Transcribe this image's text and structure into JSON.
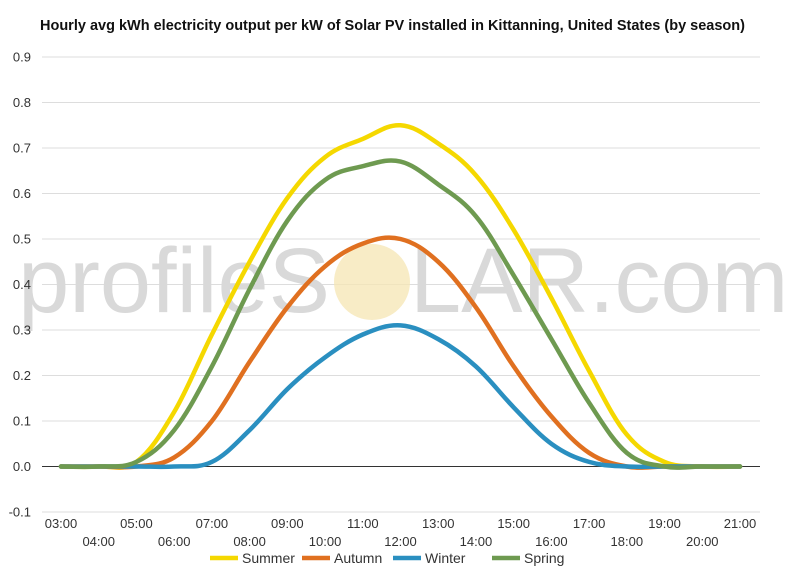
{
  "chart_data": {
    "type": "line",
    "title": "Hourly avg kWh electricity output per kW of Solar PV installed in Kittanning, United States (by season)",
    "xlabel": "",
    "ylabel": "",
    "ylim": [
      -0.1,
      0.9
    ],
    "yticks": [
      "-0.1",
      "0.0",
      "0.1",
      "0.2",
      "0.3",
      "0.4",
      "0.5",
      "0.6",
      "0.7",
      "0.8",
      "0.9"
    ],
    "x": [
      "03:00",
      "04:00",
      "05:00",
      "06:00",
      "07:00",
      "08:00",
      "09:00",
      "10:00",
      "11:00",
      "12:00",
      "13:00",
      "14:00",
      "15:00",
      "16:00",
      "17:00",
      "18:00",
      "19:00",
      "20:00",
      "21:00"
    ],
    "grid": true,
    "legend_position": "bottom",
    "watermark": {
      "left": "profileS",
      "right": "LAR.com"
    },
    "series": [
      {
        "name": "Summer",
        "color": "#f5d800",
        "values": [
          0.0,
          0.0,
          0.01,
          0.12,
          0.29,
          0.45,
          0.59,
          0.68,
          0.72,
          0.75,
          0.71,
          0.64,
          0.52,
          0.37,
          0.21,
          0.07,
          0.01,
          0.0,
          0.0
        ]
      },
      {
        "name": "Autumn",
        "color": "#e07020",
        "values": [
          0.0,
          0.0,
          0.0,
          0.02,
          0.1,
          0.23,
          0.35,
          0.44,
          0.49,
          0.5,
          0.45,
          0.35,
          0.22,
          0.11,
          0.03,
          0.0,
          0.0,
          0.0,
          0.0
        ]
      },
      {
        "name": "Winter",
        "color": "#2a8fc0",
        "values": [
          0.0,
          0.0,
          0.0,
          0.0,
          0.01,
          0.08,
          0.17,
          0.24,
          0.29,
          0.31,
          0.28,
          0.22,
          0.13,
          0.05,
          0.01,
          0.0,
          0.0,
          0.0,
          0.0
        ]
      },
      {
        "name": "Spring",
        "color": "#6e9a50",
        "values": [
          0.0,
          0.0,
          0.01,
          0.08,
          0.22,
          0.39,
          0.54,
          0.63,
          0.66,
          0.67,
          0.62,
          0.55,
          0.42,
          0.28,
          0.14,
          0.03,
          0.0,
          0.0,
          0.0
        ]
      }
    ]
  }
}
